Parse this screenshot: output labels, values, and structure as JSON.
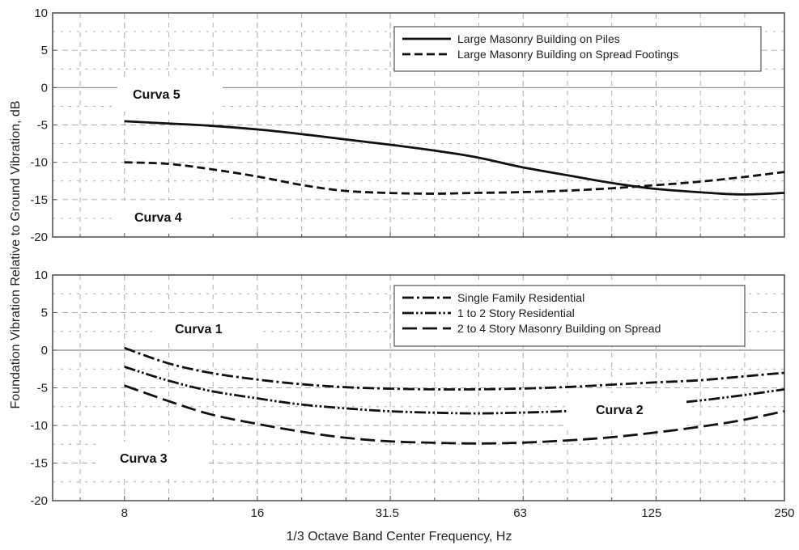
{
  "figure": {
    "ylabel": "Foundation Vibration Relative to Ground Vibration, dB",
    "xlabel": "1/3 Octave Band Center Frequency, Hz",
    "x_tick_labels": [
      "8",
      "16",
      "31.5",
      "63",
      "125",
      "250"
    ]
  },
  "chart_data": [
    {
      "type": "line",
      "panel": "top",
      "xlabel": "1/3 Octave Band Center Frequency, Hz",
      "ylabel": "Foundation Vibration Relative to Ground Vibration, dB",
      "x_scale": "log",
      "xlim": [
        5.5,
        250
      ],
      "ylim": [
        -20,
        10
      ],
      "y_ticks": [
        10,
        5,
        0,
        -5,
        -10,
        -15,
        -20
      ],
      "grid": true,
      "legend_position": "top-right",
      "series": [
        {
          "name": "Large Masonry Building on Piles",
          "style": "solid",
          "x": [
            8,
            10,
            12.5,
            16,
            20,
            25,
            31.5,
            40,
            50,
            63,
            80,
            100,
            125,
            160,
            200,
            250
          ],
          "y": [
            -4.5,
            -4.8,
            -5.1,
            -5.6,
            -6.2,
            -6.9,
            -7.6,
            -8.4,
            -9.3,
            -10.6,
            -11.7,
            -12.7,
            -13.5,
            -14.0,
            -14.3,
            -14.1
          ]
        },
        {
          "name": "Large Masonry Building on Spread Footings",
          "style": "dashed",
          "x": [
            8,
            10,
            12.5,
            16,
            20,
            25,
            31.5,
            40,
            50,
            63,
            80,
            100,
            125,
            160,
            200,
            250
          ],
          "y": [
            -10.0,
            -10.2,
            -10.9,
            -11.9,
            -13.0,
            -13.8,
            -14.1,
            -14.2,
            -14.1,
            -14.0,
            -13.8,
            -13.5,
            -13.1,
            -12.6,
            -12.0,
            -11.3
          ]
        }
      ]
    },
    {
      "type": "line",
      "panel": "bottom",
      "xlabel": "1/3 Octave Band Center Frequency, Hz",
      "ylabel": "Foundation Vibration Relative to Ground Vibration, dB",
      "x_scale": "log",
      "xlim": [
        5.5,
        250
      ],
      "ylim": [
        -20,
        10
      ],
      "y_ticks": [
        10,
        5,
        0,
        -5,
        -10,
        -15,
        -20
      ],
      "grid": true,
      "legend_position": "top-right",
      "series": [
        {
          "name": "Single Family Residential",
          "style": "dash-dot",
          "x": [
            8,
            10,
            12.5,
            16,
            20,
            25,
            31.5,
            40,
            50,
            63,
            80,
            100,
            125,
            160,
            200,
            250
          ],
          "y": [
            0.3,
            -1.7,
            -3.0,
            -3.9,
            -4.5,
            -4.9,
            -5.1,
            -5.2,
            -5.2,
            -5.1,
            -4.9,
            -4.6,
            -4.3,
            -4.0,
            -3.5,
            -3.0
          ]
        },
        {
          "name": "1 to 2 Story Residential",
          "style": "dash-dot-dot",
          "x": [
            8,
            10,
            12.5,
            16,
            20,
            25,
            31.5,
            40,
            50,
            63,
            80,
            100,
            125,
            160,
            200,
            250
          ],
          "y": [
            -2.2,
            -4.0,
            -5.4,
            -6.4,
            -7.2,
            -7.7,
            -8.1,
            -8.3,
            -8.4,
            -8.3,
            -8.1,
            -7.8,
            -7.3,
            -6.7,
            -6.0,
            -5.2
          ]
        },
        {
          "name": "2 to 4 Story Masonry Building on Spread",
          "style": "long-dash",
          "x": [
            8,
            10,
            12.5,
            16,
            20,
            25,
            31.5,
            40,
            50,
            63,
            80,
            100,
            125,
            160,
            200,
            250
          ],
          "y": [
            -4.7,
            -6.7,
            -8.5,
            -9.8,
            -10.8,
            -11.6,
            -12.1,
            -12.3,
            -12.4,
            -12.3,
            -12.0,
            -11.6,
            -11.0,
            -10.2,
            -9.3,
            -8.1
          ]
        }
      ]
    }
  ],
  "annotations": {
    "curva5": "Curva 5",
    "curva4": "Curva 4",
    "curva1": "Curva 1",
    "curva2": "Curva 2",
    "curva3": "Curva 3"
  }
}
